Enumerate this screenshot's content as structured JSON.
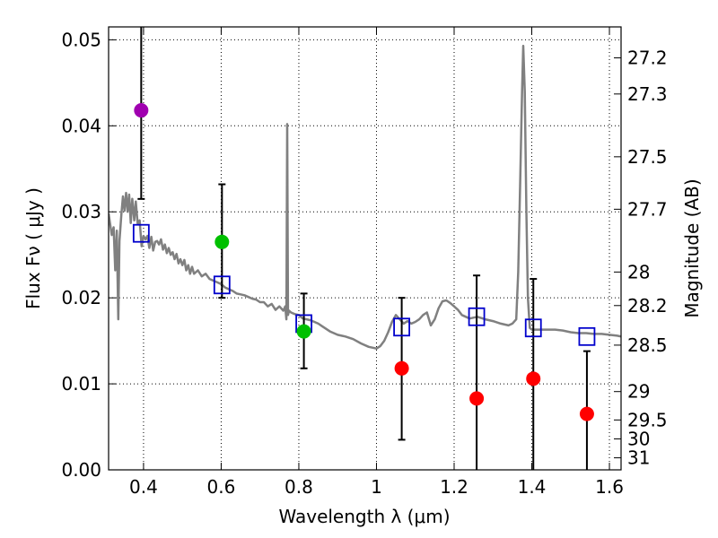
{
  "chart_data": {
    "type": "scatter",
    "xlabel": "Wavelength  λ (μm)",
    "ylabel": "Flux  Fν  ( μJy )",
    "y2label": "Magnitude (AB)",
    "xlim": [
      0.31,
      1.63
    ],
    "ylim": [
      0.0,
      0.0515
    ],
    "grid": true,
    "x_ticks": [
      0.4,
      0.6,
      0.8,
      1.0,
      1.2,
      1.4,
      1.6
    ],
    "x_tick_labels": [
      "0.4",
      "0.6",
      "0.8",
      "1",
      "1.2",
      "1.4",
      "1.6"
    ],
    "y_ticks": [
      0.0,
      0.01,
      0.02,
      0.03,
      0.04,
      0.05
    ],
    "y_tick_labels": [
      "0.00",
      "0.01",
      "0.02",
      "0.03",
      "0.04",
      "0.05"
    ],
    "y2_ticks": [
      {
        "label": "27.2",
        "flux": 0.0479
      },
      {
        "label": "27.3",
        "flux": 0.0437
      },
      {
        "label": "27.5",
        "flux": 0.0364
      },
      {
        "label": "27.7",
        "flux": 0.0303
      },
      {
        "label": "28",
        "flux": 0.023
      },
      {
        "label": "28.2",
        "flux": 0.0191
      },
      {
        "label": "28.5",
        "flux": 0.0145
      },
      {
        "label": "29",
        "flux": 0.0091
      },
      {
        "label": "29.5",
        "flux": 0.0058
      },
      {
        "label": "30",
        "flux": 0.0036
      },
      {
        "label": "31",
        "flux": 0.0014
      }
    ],
    "model_spectrum": {
      "color": "#808080",
      "points": [
        [
          0.31,
          0.0298
        ],
        [
          0.318,
          0.0273
        ],
        [
          0.323,
          0.0282
        ],
        [
          0.327,
          0.0232
        ],
        [
          0.331,
          0.0278
        ],
        [
          0.335,
          0.0175
        ],
        [
          0.338,
          0.0266
        ],
        [
          0.343,
          0.0298
        ],
        [
          0.347,
          0.0318
        ],
        [
          0.351,
          0.0301
        ],
        [
          0.355,
          0.0322
        ],
        [
          0.359,
          0.03
        ],
        [
          0.363,
          0.032
        ],
        [
          0.367,
          0.0287
        ],
        [
          0.371,
          0.0315
        ],
        [
          0.376,
          0.029
        ],
        [
          0.38,
          0.0312
        ],
        [
          0.385,
          0.0286
        ],
        [
          0.39,
          0.029
        ],
        [
          0.395,
          0.026
        ],
        [
          0.4,
          0.0272
        ],
        [
          0.405,
          0.0268
        ],
        [
          0.41,
          0.0272
        ],
        [
          0.415,
          0.0258
        ],
        [
          0.42,
          0.0271
        ],
        [
          0.425,
          0.0255
        ],
        [
          0.43,
          0.0265
        ],
        [
          0.435,
          0.0266
        ],
        [
          0.44,
          0.0262
        ],
        [
          0.445,
          0.0268
        ],
        [
          0.45,
          0.0256
        ],
        [
          0.455,
          0.0262
        ],
        [
          0.46,
          0.0252
        ],
        [
          0.465,
          0.0258
        ],
        [
          0.47,
          0.025
        ],
        [
          0.475,
          0.0253
        ],
        [
          0.48,
          0.0245
        ],
        [
          0.485,
          0.0251
        ],
        [
          0.49,
          0.024
        ],
        [
          0.495,
          0.0245
        ],
        [
          0.5,
          0.0238
        ],
        [
          0.505,
          0.0244
        ],
        [
          0.51,
          0.0232
        ],
        [
          0.515,
          0.0238
        ],
        [
          0.52,
          0.0228
        ],
        [
          0.525,
          0.0236
        ],
        [
          0.53,
          0.0228
        ],
        [
          0.54,
          0.0232
        ],
        [
          0.55,
          0.0225
        ],
        [
          0.56,
          0.0228
        ],
        [
          0.57,
          0.0222
        ],
        [
          0.58,
          0.022
        ],
        [
          0.59,
          0.0218
        ],
        [
          0.6,
          0.0216
        ],
        [
          0.61,
          0.0212
        ],
        [
          0.62,
          0.021
        ],
        [
          0.63,
          0.0208
        ],
        [
          0.64,
          0.0205
        ],
        [
          0.65,
          0.0204
        ],
        [
          0.66,
          0.0203
        ],
        [
          0.67,
          0.0201
        ],
        [
          0.68,
          0.0199
        ],
        [
          0.69,
          0.0198
        ],
        [
          0.7,
          0.0195
        ],
        [
          0.71,
          0.0195
        ],
        [
          0.72,
          0.019
        ],
        [
          0.73,
          0.0193
        ],
        [
          0.74,
          0.0186
        ],
        [
          0.75,
          0.019
        ],
        [
          0.76,
          0.0185
        ],
        [
          0.765,
          0.019
        ],
        [
          0.768,
          0.0175
        ],
        [
          0.77,
          0.0402
        ],
        [
          0.772,
          0.018
        ],
        [
          0.775,
          0.0185
        ],
        [
          0.78,
          0.0183
        ],
        [
          0.79,
          0.0181
        ],
        [
          0.8,
          0.018
        ],
        [
          0.81,
          0.0176
        ],
        [
          0.82,
          0.0175
        ],
        [
          0.83,
          0.0174
        ],
        [
          0.84,
          0.0172
        ],
        [
          0.85,
          0.017
        ],
        [
          0.86,
          0.0167
        ],
        [
          0.88,
          0.0161
        ],
        [
          0.9,
          0.0157
        ],
        [
          0.92,
          0.0155
        ],
        [
          0.94,
          0.0152
        ],
        [
          0.96,
          0.0147
        ],
        [
          0.98,
          0.0143
        ],
        [
          1.0,
          0.0141
        ],
        [
          1.01,
          0.0144
        ],
        [
          1.02,
          0.015
        ],
        [
          1.03,
          0.016
        ],
        [
          1.04,
          0.0172
        ],
        [
          1.05,
          0.018
        ],
        [
          1.06,
          0.0175
        ],
        [
          1.07,
          0.017
        ],
        [
          1.08,
          0.0173
        ],
        [
          1.09,
          0.017
        ],
        [
          1.1,
          0.0172
        ],
        [
          1.11,
          0.0175
        ],
        [
          1.12,
          0.018
        ],
        [
          1.13,
          0.0183
        ],
        [
          1.14,
          0.0168
        ],
        [
          1.15,
          0.0175
        ],
        [
          1.16,
          0.0188
        ],
        [
          1.17,
          0.0196
        ],
        [
          1.18,
          0.0197
        ],
        [
          1.19,
          0.0194
        ],
        [
          1.2,
          0.019
        ],
        [
          1.21,
          0.0186
        ],
        [
          1.22,
          0.018
        ],
        [
          1.23,
          0.0178
        ],
        [
          1.24,
          0.0176
        ],
        [
          1.26,
          0.0178
        ],
        [
          1.28,
          0.0175
        ],
        [
          1.3,
          0.0173
        ],
        [
          1.32,
          0.017
        ],
        [
          1.34,
          0.0168
        ],
        [
          1.35,
          0.017
        ],
        [
          1.36,
          0.0175
        ],
        [
          1.365,
          0.023
        ],
        [
          1.37,
          0.033
        ],
        [
          1.375,
          0.044
        ],
        [
          1.378,
          0.0493
        ],
        [
          1.382,
          0.044
        ],
        [
          1.386,
          0.03
        ],
        [
          1.39,
          0.02
        ],
        [
          1.395,
          0.0165
        ],
        [
          1.4,
          0.0163
        ],
        [
          1.42,
          0.0163
        ],
        [
          1.44,
          0.0163
        ],
        [
          1.46,
          0.0163
        ],
        [
          1.48,
          0.0162
        ],
        [
          1.5,
          0.016
        ],
        [
          1.52,
          0.0159
        ],
        [
          1.54,
          0.0159
        ],
        [
          1.56,
          0.0158
        ],
        [
          1.58,
          0.0158
        ],
        [
          1.6,
          0.0157
        ],
        [
          1.62,
          0.0156
        ],
        [
          1.63,
          0.0155
        ]
      ]
    },
    "model_photometry": {
      "marker": "open-square",
      "color": "#0000cc",
      "points": [
        [
          0.394,
          0.0275
        ],
        [
          0.602,
          0.0215
        ],
        [
          0.813,
          0.017
        ],
        [
          1.065,
          0.0166
        ],
        [
          1.258,
          0.0178
        ],
        [
          1.404,
          0.0165
        ],
        [
          1.542,
          0.0155
        ]
      ]
    },
    "observed": [
      {
        "x": 0.394,
        "y": 0.0418,
        "err_low": 0.0315,
        "err_high": 0.0515,
        "color": "#a000b0",
        "upper_capped": false
      },
      {
        "x": 0.602,
        "y": 0.0265,
        "err_low": 0.02,
        "err_high": 0.0332,
        "color": "#00c000",
        "upper_capped": true
      },
      {
        "x": 0.813,
        "y": 0.0161,
        "err_low": 0.0118,
        "err_high": 0.0205,
        "color": "#00c000",
        "upper_capped": true
      },
      {
        "x": 1.065,
        "y": 0.0118,
        "err_low": 0.0035,
        "err_high": 0.02,
        "color": "#ff0000",
        "upper_capped": true
      },
      {
        "x": 1.258,
        "y": 0.0083,
        "err_low": 0.0,
        "err_high": 0.0226,
        "color": "#ff0000",
        "upper_capped": true
      },
      {
        "x": 1.404,
        "y": 0.0106,
        "err_low": 0.0,
        "err_high": 0.0222,
        "color": "#ff0000",
        "upper_capped": true
      },
      {
        "x": 1.542,
        "y": 0.0065,
        "err_low": 0.0,
        "err_high": 0.0138,
        "color": "#ff0000",
        "upper_capped": true
      }
    ]
  }
}
